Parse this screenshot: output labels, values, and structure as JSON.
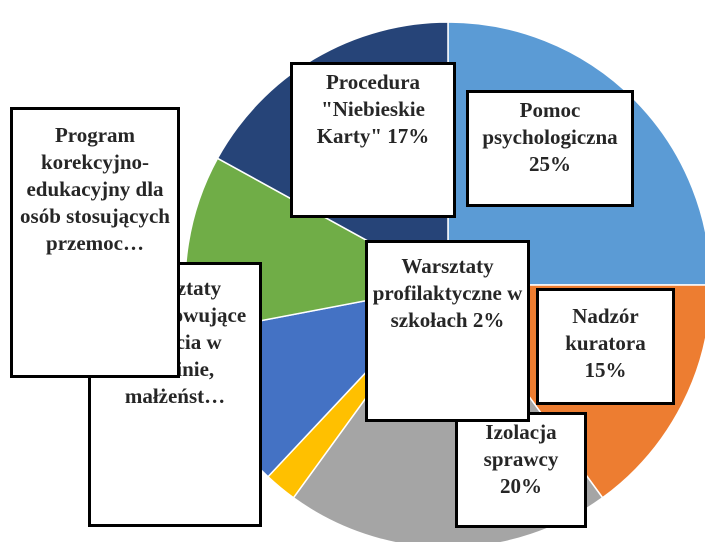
{
  "chart_data": {
    "type": "pie",
    "categories": [
      "Pomoc psychologiczna",
      "Nadzór kuratora",
      "Izolacja sprawcy",
      "Warsztaty profilaktyczne w szkołach",
      "Warsztaty przygotowujące do życia w rodzinie, małżeńst…",
      "Program korekcyjno-edukacyjny dla osób stosujących przemoc…",
      "Procedura \"Niebieskie Karty\""
    ],
    "values": [
      25,
      15,
      20,
      2,
      10,
      11,
      17
    ],
    "value_labels": [
      "25%",
      "15%",
      "20%",
      "2%",
      null,
      null,
      "17%"
    ],
    "colors": [
      "#5b9bd5",
      "#ed7d31",
      "#a5a5a5",
      "#ffc000",
      "#4472c4",
      "#70ad47",
      "#264478"
    ]
  }
}
